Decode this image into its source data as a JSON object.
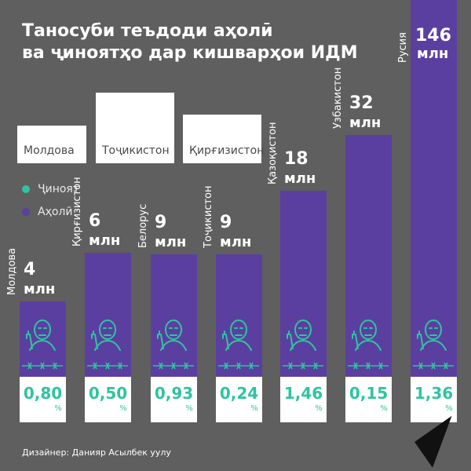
{
  "title": {
    "line1": "Таносуби теъдоди аҳолӣ",
    "line2": "ва ҷиноятҳо дар кишварҳои ИДМ"
  },
  "legend": {
    "crime": "Ҷиноят",
    "population": "Аҳолӣ"
  },
  "legend_boxes": [
    "Молдова",
    "Тоҷикистон",
    "Қирғизистон"
  ],
  "credit": "Дизайнер: Данияр Асылбек уулу",
  "colors": {
    "background": "#5f5f5f",
    "bar": "#5b3fa0",
    "crime": "#2ec4a0",
    "white": "#ffffff"
  },
  "icons": {
    "figure": "masked-criminal-with-gun-icon",
    "barbed_wire": "barbed-wire-icon",
    "logo": "sputnik-arrow-logo"
  },
  "chart_data": {
    "type": "bar",
    "categories": [
      "Молдова",
      "Қирғизистон",
      "Белорус",
      "Тоҷикистон",
      "Қазоқистон",
      "Узбакистон",
      "Русия"
    ],
    "series": [
      {
        "name": "Аҳолӣ",
        "values": [
          4,
          6,
          9,
          9,
          18,
          32,
          146
        ],
        "labels": [
          "4 млн",
          "6 млн",
          "9 млн",
          "9 млн",
          "18 млн",
          "32 млн",
          "146 млн"
        ]
      },
      {
        "name": "Ҷиноят",
        "values": [
          0.8,
          0.5,
          0.93,
          0.24,
          1.46,
          0.15,
          1.36
        ],
        "labels": [
          "0,80",
          "0,50",
          "0,93",
          "0,24",
          "1,46",
          "0,15",
          "1,36"
        ]
      }
    ],
    "value_unit": "млн",
    "percent_unit": "%"
  }
}
